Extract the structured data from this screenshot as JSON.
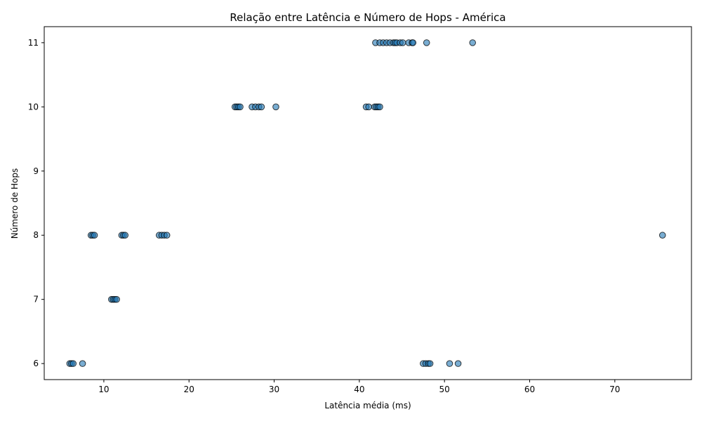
{
  "chart_data": {
    "type": "scatter",
    "title": "Relação entre Latência e Número de Hops - América",
    "xlabel": "Latência média (ms)",
    "ylabel": "Número de Hops",
    "xlim": [
      3.0,
      79.0
    ],
    "ylim": [
      5.75,
      11.25
    ],
    "xticks": [
      10,
      20,
      30,
      40,
      50,
      60,
      70
    ],
    "yticks": [
      6,
      7,
      8,
      9,
      10,
      11
    ],
    "grid": false,
    "marker_color": "#1f77b4",
    "marker_edge_color": "#000000",
    "marker_alpha": 0.6,
    "points": [
      {
        "x": 41.9,
        "y": 11
      },
      {
        "x": 42.4,
        "y": 11
      },
      {
        "x": 42.8,
        "y": 11
      },
      {
        "x": 43.2,
        "y": 11
      },
      {
        "x": 43.6,
        "y": 11
      },
      {
        "x": 44.0,
        "y": 11
      },
      {
        "x": 44.2,
        "y": 11
      },
      {
        "x": 44.4,
        "y": 11
      },
      {
        "x": 44.8,
        "y": 11
      },
      {
        "x": 45.1,
        "y": 11
      },
      {
        "x": 45.8,
        "y": 11
      },
      {
        "x": 46.2,
        "y": 11
      },
      {
        "x": 46.3,
        "y": 11
      },
      {
        "x": 47.9,
        "y": 11
      },
      {
        "x": 53.3,
        "y": 11
      },
      {
        "x": 25.4,
        "y": 10
      },
      {
        "x": 25.6,
        "y": 10
      },
      {
        "x": 25.8,
        "y": 10
      },
      {
        "x": 26.0,
        "y": 10
      },
      {
        "x": 27.4,
        "y": 10
      },
      {
        "x": 27.8,
        "y": 10
      },
      {
        "x": 28.2,
        "y": 10
      },
      {
        "x": 28.5,
        "y": 10
      },
      {
        "x": 30.2,
        "y": 10
      },
      {
        "x": 40.8,
        "y": 10
      },
      {
        "x": 41.1,
        "y": 10
      },
      {
        "x": 41.8,
        "y": 10
      },
      {
        "x": 42.0,
        "y": 10
      },
      {
        "x": 42.2,
        "y": 10
      },
      {
        "x": 42.4,
        "y": 10
      },
      {
        "x": 8.5,
        "y": 8
      },
      {
        "x": 8.7,
        "y": 8
      },
      {
        "x": 8.9,
        "y": 8
      },
      {
        "x": 12.1,
        "y": 8
      },
      {
        "x": 12.3,
        "y": 8
      },
      {
        "x": 12.5,
        "y": 8
      },
      {
        "x": 16.5,
        "y": 8
      },
      {
        "x": 16.8,
        "y": 8
      },
      {
        "x": 17.1,
        "y": 8
      },
      {
        "x": 17.4,
        "y": 8
      },
      {
        "x": 75.6,
        "y": 8
      },
      {
        "x": 10.9,
        "y": 7
      },
      {
        "x": 11.1,
        "y": 7
      },
      {
        "x": 11.3,
        "y": 7
      },
      {
        "x": 11.5,
        "y": 7
      },
      {
        "x": 6.0,
        "y": 6
      },
      {
        "x": 6.2,
        "y": 6
      },
      {
        "x": 6.4,
        "y": 6
      },
      {
        "x": 7.5,
        "y": 6
      },
      {
        "x": 47.5,
        "y": 6
      },
      {
        "x": 47.8,
        "y": 6
      },
      {
        "x": 48.1,
        "y": 6
      },
      {
        "x": 48.3,
        "y": 6
      },
      {
        "x": 50.6,
        "y": 6
      },
      {
        "x": 51.6,
        "y": 6
      }
    ]
  }
}
